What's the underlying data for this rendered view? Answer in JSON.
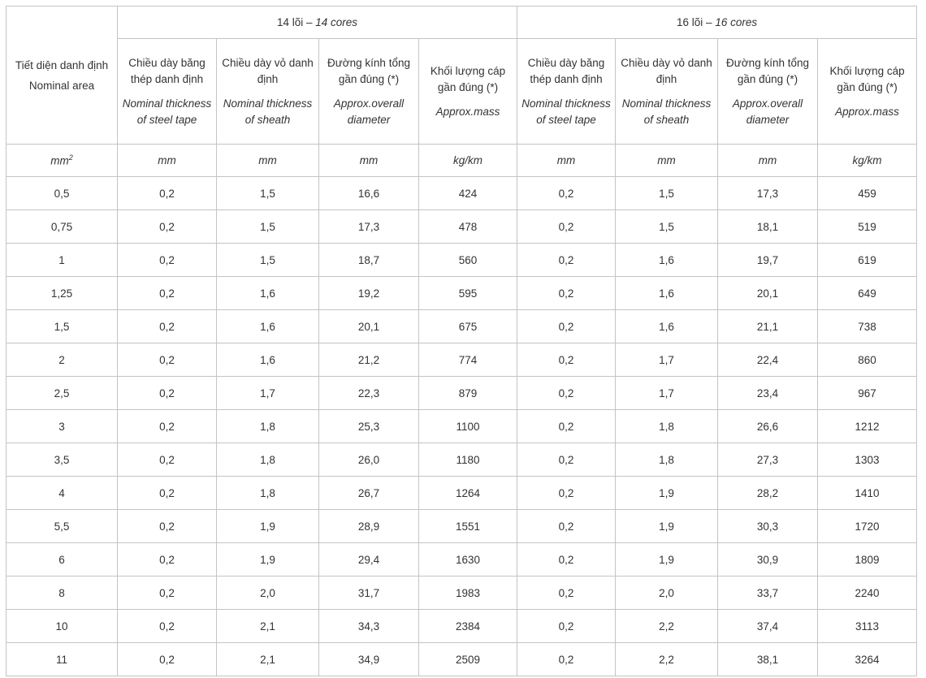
{
  "header": {
    "first_col_vi": "Tiết diện danh định",
    "first_col_en": "Nominal area",
    "group1_vi": "14 lõi –",
    "group1_en": "14 cores",
    "group2_vi": "16 lõi –",
    "group2_en": "16 cores",
    "cols": [
      {
        "vi": "Chiều dày băng thép danh định",
        "en": "Nominal thickness of steel tape"
      },
      {
        "vi": "Chiều dày vỏ danh định",
        "en": "Nominal thickness of sheath"
      },
      {
        "vi": "Đường kính tổng gần đúng (*)",
        "en": "Approx.overall diameter"
      },
      {
        "vi": "Khối lượng cáp gần đúng (*)",
        "en": "Approx.mass"
      }
    ],
    "units": {
      "area_base": "mm",
      "area_exp": "2",
      "tape": "mm",
      "sheath": "mm",
      "diameter": "mm",
      "mass": "kg/km"
    }
  },
  "rows": [
    [
      "0,5",
      "0,2",
      "1,5",
      "16,6",
      "424",
      "0,2",
      "1,5",
      "17,3",
      "459"
    ],
    [
      "0,75",
      "0,2",
      "1,5",
      "17,3",
      "478",
      "0,2",
      "1,5",
      "18,1",
      "519"
    ],
    [
      "1",
      "0,2",
      "1,5",
      "18,7",
      "560",
      "0,2",
      "1,6",
      "19,7",
      "619"
    ],
    [
      "1,25",
      "0,2",
      "1,6",
      "19,2",
      "595",
      "0,2",
      "1,6",
      "20,1",
      "649"
    ],
    [
      "1,5",
      "0,2",
      "1,6",
      "20,1",
      "675",
      "0,2",
      "1,6",
      "21,1",
      "738"
    ],
    [
      "2",
      "0,2",
      "1,6",
      "21,2",
      "774",
      "0,2",
      "1,7",
      "22,4",
      "860"
    ],
    [
      "2,5",
      "0,2",
      "1,7",
      "22,3",
      "879",
      "0,2",
      "1,7",
      "23,4",
      "967"
    ],
    [
      "3",
      "0,2",
      "1,8",
      "25,3",
      "1100",
      "0,2",
      "1,8",
      "26,6",
      "1212"
    ],
    [
      "3,5",
      "0,2",
      "1,8",
      "26,0",
      "1180",
      "0,2",
      "1,8",
      "27,3",
      "1303"
    ],
    [
      "4",
      "0,2",
      "1,8",
      "26,7",
      "1264",
      "0,2",
      "1,9",
      "28,2",
      "1410"
    ],
    [
      "5,5",
      "0,2",
      "1,9",
      "28,9",
      "1551",
      "0,2",
      "1,9",
      "30,3",
      "1720"
    ],
    [
      "6",
      "0,2",
      "1,9",
      "29,4",
      "1630",
      "0,2",
      "1,9",
      "30,9",
      "1809"
    ],
    [
      "8",
      "0,2",
      "2,0",
      "31,7",
      "1983",
      "0,2",
      "2,0",
      "33,7",
      "2240"
    ],
    [
      "10",
      "0,2",
      "2,1",
      "34,3",
      "2384",
      "0,2",
      "2,2",
      "37,4",
      "3113"
    ],
    [
      "11",
      "0,2",
      "2,1",
      "34,9",
      "2509",
      "0,2",
      "2,2",
      "38,1",
      "3264"
    ]
  ]
}
